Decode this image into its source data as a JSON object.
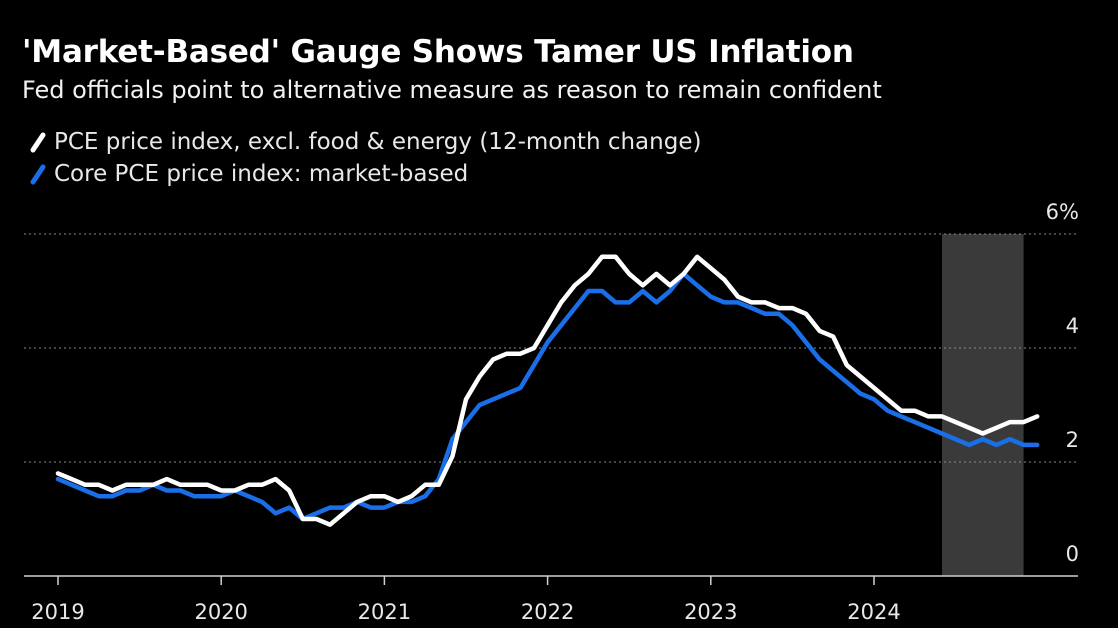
{
  "header": {
    "title": "'Market-Based' Gauge Shows Tamer US Inflation",
    "subtitle": "Fed officials point to alternative measure as reason to remain confident"
  },
  "colors": {
    "background": "#000000",
    "series_white": "#ffffff",
    "series_blue": "#1a6fe8",
    "grid": "#8a8a8a",
    "shade": "#3a3a3a"
  },
  "chart_data": {
    "type": "line",
    "title": "'Market-Based' Gauge Shows Tamer US Inflation",
    "subtitle": "Fed officials point to alternative measure as reason to remain confident",
    "xlabel": "",
    "ylabel": "",
    "x_start": "2019-01",
    "x_end": "2024-11",
    "xlim": [
      "2018-10",
      "2025-08"
    ],
    "ylim": [
      0,
      6
    ],
    "y_ticks": [
      0,
      2,
      4,
      6
    ],
    "y_tick_labels": [
      "0",
      "2",
      "4",
      "6%"
    ],
    "x_ticks": [
      "2019-01",
      "2020-01",
      "2021-01",
      "2022-01",
      "2023-01",
      "2024-01"
    ],
    "x_tick_labels": [
      "2019",
      "2020",
      "2021",
      "2022",
      "2023",
      "2024"
    ],
    "grid": true,
    "legend_position": "top-left",
    "shaded_region": [
      "2024-06",
      "2024-12"
    ],
    "series": [
      {
        "name": "PCE price index, excl. food & energy (12-month change)",
        "color": "#ffffff",
        "values": [
          1.8,
          1.7,
          1.6,
          1.6,
          1.5,
          1.6,
          1.6,
          1.6,
          1.7,
          1.6,
          1.6,
          1.6,
          1.5,
          1.5,
          1.6,
          1.6,
          1.7,
          1.5,
          1.0,
          1.0,
          0.9,
          1.1,
          1.3,
          1.4,
          1.4,
          1.3,
          1.4,
          1.6,
          1.6,
          2.1,
          3.1,
          3.5,
          3.8,
          3.9,
          3.9,
          4.0,
          4.4,
          4.8,
          5.1,
          5.3,
          5.6,
          5.6,
          5.3,
          5.1,
          5.3,
          5.1,
          5.3,
          5.6,
          5.4,
          5.2,
          4.9,
          4.8,
          4.8,
          4.7,
          4.7,
          4.6,
          4.3,
          4.2,
          3.7,
          3.5,
          3.3,
          3.1,
          2.9,
          2.9,
          2.8,
          2.8,
          2.7,
          2.6,
          2.5,
          2.6,
          2.7,
          2.7,
          2.8
        ]
      },
      {
        "name": "Core PCE price index: market-based",
        "color": "#1a6fe8",
        "values": [
          1.7,
          1.6,
          1.5,
          1.4,
          1.4,
          1.5,
          1.5,
          1.6,
          1.5,
          1.5,
          1.4,
          1.4,
          1.4,
          1.5,
          1.4,
          1.3,
          1.1,
          1.2,
          1.0,
          1.1,
          1.2,
          1.2,
          1.3,
          1.2,
          1.2,
          1.3,
          1.3,
          1.4,
          1.7,
          2.4,
          2.7,
          3.0,
          3.1,
          3.2,
          3.3,
          3.7,
          4.1,
          4.4,
          4.7,
          5.0,
          5.0,
          4.8,
          4.8,
          5.0,
          4.8,
          5.0,
          5.3,
          5.1,
          4.9,
          4.8,
          4.8,
          4.7,
          4.6,
          4.6,
          4.4,
          4.1,
          3.8,
          3.6,
          3.4,
          3.2,
          3.1,
          2.9,
          2.8,
          2.7,
          2.6,
          2.5,
          2.4,
          2.3,
          2.4,
          2.3,
          2.4,
          2.3,
          2.3
        ]
      }
    ]
  }
}
